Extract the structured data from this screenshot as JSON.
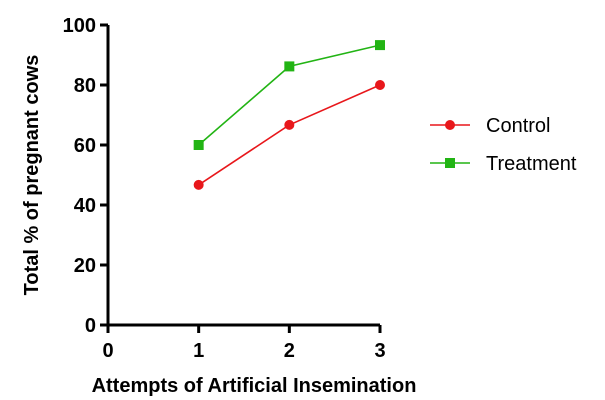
{
  "chart_data": {
    "type": "line",
    "title": "",
    "xlabel": "Attempts of Artificial Insemination",
    "ylabel": "Total % of pregnant cows",
    "xlim": [
      0,
      3
    ],
    "ylim": [
      0,
      100
    ],
    "x_ticks": [
      0,
      1,
      2,
      3
    ],
    "y_ticks": [
      0,
      20,
      40,
      60,
      80,
      100
    ],
    "grid": false,
    "legend_position": "right",
    "series": [
      {
        "name": "Control",
        "color": "#e8171b",
        "marker": "circle",
        "x": [
          1,
          2,
          3
        ],
        "y": [
          46.7,
          66.7,
          80
        ]
      },
      {
        "name": "Treatment",
        "color": "#22b414",
        "marker": "square",
        "x": [
          1,
          2,
          3
        ],
        "y": [
          60,
          86.2,
          93.3
        ]
      }
    ]
  }
}
